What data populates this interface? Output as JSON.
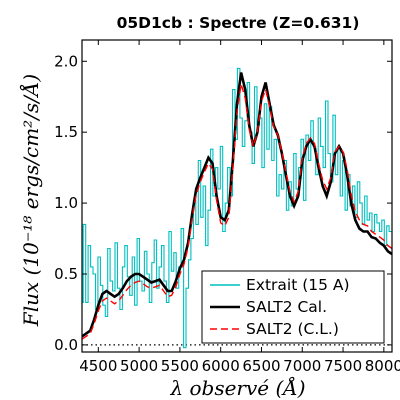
{
  "chart_data": {
    "type": "line",
    "title": "05D1cb : Spectre (Z=0.631)",
    "xlabel": "λ observé (Å)",
    "ylabel": "Flux (10⁻¹⁸ ergs/cm²/s/Å)",
    "xlim": [
      4300,
      8100
    ],
    "ylim": [
      -0.05,
      2.15
    ],
    "xticks": [
      4500,
      5000,
      5500,
      6000,
      6500,
      7000,
      7500,
      8000
    ],
    "yticks": [
      0.0,
      0.5,
      1.0,
      1.5,
      2.0
    ],
    "xtick_labels": [
      "4500",
      "5000",
      "5500",
      "6000",
      "6500",
      "7000",
      "7500",
      "8000"
    ],
    "ytick_labels": [
      "0.0",
      "0.5",
      "1.0",
      "1.5",
      "2.0"
    ],
    "zero_line": 0.0,
    "legend_position": "lower-right",
    "series": [
      {
        "name": "Extrait (15 A)",
        "color": "#00bfbf",
        "style": "steps",
        "x": [
          4300,
          4330,
          4360,
          4390,
          4420,
          4450,
          4480,
          4510,
          4540,
          4570,
          4600,
          4630,
          4660,
          4690,
          4720,
          4750,
          4780,
          4810,
          4840,
          4870,
          4900,
          4930,
          4960,
          4990,
          5020,
          5050,
          5080,
          5110,
          5140,
          5170,
          5200,
          5230,
          5260,
          5290,
          5320,
          5350,
          5380,
          5410,
          5440,
          5470,
          5500,
          5530,
          5560,
          5590,
          5620,
          5650,
          5680,
          5710,
          5740,
          5770,
          5800,
          5830,
          5860,
          5890,
          5920,
          5950,
          5980,
          6010,
          6040,
          6070,
          6100,
          6130,
          6160,
          6190,
          6220,
          6250,
          6280,
          6310,
          6340,
          6370,
          6400,
          6430,
          6460,
          6490,
          6520,
          6550,
          6580,
          6610,
          6640,
          6670,
          6700,
          6730,
          6760,
          6790,
          6820,
          6850,
          6880,
          6910,
          6940,
          6970,
          7000,
          7030,
          7060,
          7090,
          7120,
          7150,
          7180,
          7210,
          7240,
          7270,
          7300,
          7330,
          7360,
          7390,
          7420,
          7450,
          7480,
          7510,
          7540,
          7570,
          7600,
          7630,
          7660,
          7690,
          7720,
          7750,
          7780,
          7810,
          7840,
          7870,
          7900,
          7930,
          7960,
          7990,
          8020,
          8050,
          8080
        ],
        "y": [
          0.3,
          0.85,
          0.3,
          0.7,
          0.55,
          0.5,
          0.25,
          0.62,
          0.42,
          0.28,
          0.2,
          0.68,
          0.45,
          0.38,
          0.72,
          0.4,
          0.25,
          0.55,
          0.7,
          0.48,
          0.35,
          0.62,
          0.28,
          0.75,
          0.45,
          0.38,
          0.66,
          0.5,
          0.3,
          0.58,
          0.74,
          0.4,
          0.55,
          0.7,
          0.45,
          0.3,
          0.8,
          0.52,
          0.65,
          0.4,
          0.55,
          0.82,
          -0.02,
          0.4,
          0.6,
          0.75,
          1.02,
          0.85,
          1.3,
          0.9,
          1.12,
          0.7,
          0.95,
          1.38,
          1.05,
          1.25,
          1.1,
          1.4,
          0.8,
          1.0,
          1.25,
          1.05,
          1.8,
          1.45,
          1.95,
          1.6,
          1.4,
          1.58,
          1.85,
          1.5,
          1.28,
          1.82,
          1.55,
          1.6,
          1.25,
          1.7,
          1.38,
          1.68,
          1.3,
          1.45,
          1.05,
          1.2,
          1.1,
          1.3,
          0.95,
          1.15,
          0.98,
          1.35,
          1.1,
          1.25,
          1.45,
          1.02,
          1.48,
          1.3,
          1.58,
          1.4,
          1.2,
          1.6,
          1.4,
          1.25,
          1.72,
          1.35,
          1.15,
          1.62,
          1.2,
          1.4,
          1.05,
          1.3,
          0.95,
          1.2,
          0.98,
          1.12,
          0.9,
          1.15,
          1.0,
          0.85,
          1.05,
          0.88,
          0.93,
          0.8,
          0.92,
          0.86,
          0.8,
          0.88,
          0.7,
          0.84,
          0.8
        ]
      },
      {
        "name": "SALT2 Cal.",
        "color": "#000000",
        "style": "solid",
        "x": [
          4300,
          4350,
          4400,
          4450,
          4500,
          4550,
          4600,
          4650,
          4700,
          4750,
          4800,
          4850,
          4900,
          4950,
          5000,
          5050,
          5100,
          5150,
          5200,
          5250,
          5300,
          5350,
          5400,
          5450,
          5500,
          5550,
          5600,
          5650,
          5700,
          5750,
          5800,
          5850,
          5900,
          5950,
          6000,
          6050,
          6100,
          6150,
          6200,
          6250,
          6300,
          6350,
          6400,
          6450,
          6500,
          6550,
          6600,
          6650,
          6700,
          6750,
          6800,
          6850,
          6900,
          6950,
          7000,
          7050,
          7100,
          7150,
          7200,
          7250,
          7300,
          7350,
          7400,
          7450,
          7500,
          7550,
          7600,
          7650,
          7700,
          7750,
          7800,
          7850,
          7900,
          7950,
          8000,
          8050,
          8100
        ],
        "y": [
          0.06,
          0.08,
          0.1,
          0.18,
          0.28,
          0.36,
          0.38,
          0.36,
          0.34,
          0.36,
          0.4,
          0.45,
          0.48,
          0.5,
          0.5,
          0.48,
          0.46,
          0.44,
          0.45,
          0.46,
          0.42,
          0.38,
          0.38,
          0.45,
          0.54,
          0.6,
          0.72,
          0.92,
          1.1,
          1.18,
          1.25,
          1.32,
          1.28,
          1.05,
          0.9,
          0.88,
          0.95,
          1.3,
          1.7,
          1.92,
          1.8,
          1.55,
          1.4,
          1.5,
          1.75,
          1.85,
          1.7,
          1.55,
          1.48,
          1.35,
          1.2,
          1.05,
          0.98,
          1.05,
          1.3,
          1.4,
          1.45,
          1.4,
          1.25,
          1.12,
          1.05,
          1.15,
          1.35,
          1.4,
          1.35,
          1.2,
          1.0,
          0.88,
          0.82,
          0.8,
          0.8,
          0.76,
          0.75,
          0.72,
          0.7,
          0.66,
          0.64
        ]
      },
      {
        "name": "SALT2 (C.L.)",
        "color": "#ff0000",
        "style": "dashed",
        "x": [
          4300,
          4350,
          4400,
          4450,
          4500,
          4550,
          4600,
          4650,
          4700,
          4750,
          4800,
          4850,
          4900,
          4950,
          5000,
          5050,
          5100,
          5150,
          5200,
          5250,
          5300,
          5350,
          5400,
          5450,
          5500,
          5550,
          5600,
          5650,
          5700,
          5750,
          5800,
          5850,
          5900,
          5950,
          6000,
          6050,
          6100,
          6150,
          6200,
          6250,
          6300,
          6350,
          6400,
          6450,
          6500,
          6550,
          6600,
          6650,
          6700,
          6750,
          6800,
          6850,
          6900,
          6950,
          7000,
          7050,
          7100,
          7150,
          7200,
          7250,
          7300,
          7350,
          7400,
          7450,
          7500,
          7550,
          7600,
          7650,
          7700,
          7750,
          7800,
          7850,
          7900,
          7950,
          8000,
          8050,
          8100
        ],
        "y": [
          0.04,
          0.06,
          0.08,
          0.15,
          0.24,
          0.31,
          0.33,
          0.31,
          0.29,
          0.31,
          0.35,
          0.39,
          0.42,
          0.44,
          0.45,
          0.43,
          0.41,
          0.4,
          0.41,
          0.42,
          0.38,
          0.34,
          0.35,
          0.41,
          0.5,
          0.57,
          0.69,
          0.88,
          1.06,
          1.15,
          1.22,
          1.28,
          1.24,
          1.02,
          0.86,
          0.84,
          0.9,
          1.25,
          1.64,
          1.84,
          1.74,
          1.52,
          1.4,
          1.5,
          1.72,
          1.8,
          1.68,
          1.54,
          1.48,
          1.36,
          1.22,
          1.08,
          1.01,
          1.08,
          1.32,
          1.42,
          1.46,
          1.42,
          1.28,
          1.16,
          1.1,
          1.18,
          1.36,
          1.4,
          1.36,
          1.24,
          1.06,
          0.94,
          0.88,
          0.85,
          0.84,
          0.8,
          0.78,
          0.76,
          0.74,
          0.7,
          0.68
        ]
      }
    ]
  }
}
